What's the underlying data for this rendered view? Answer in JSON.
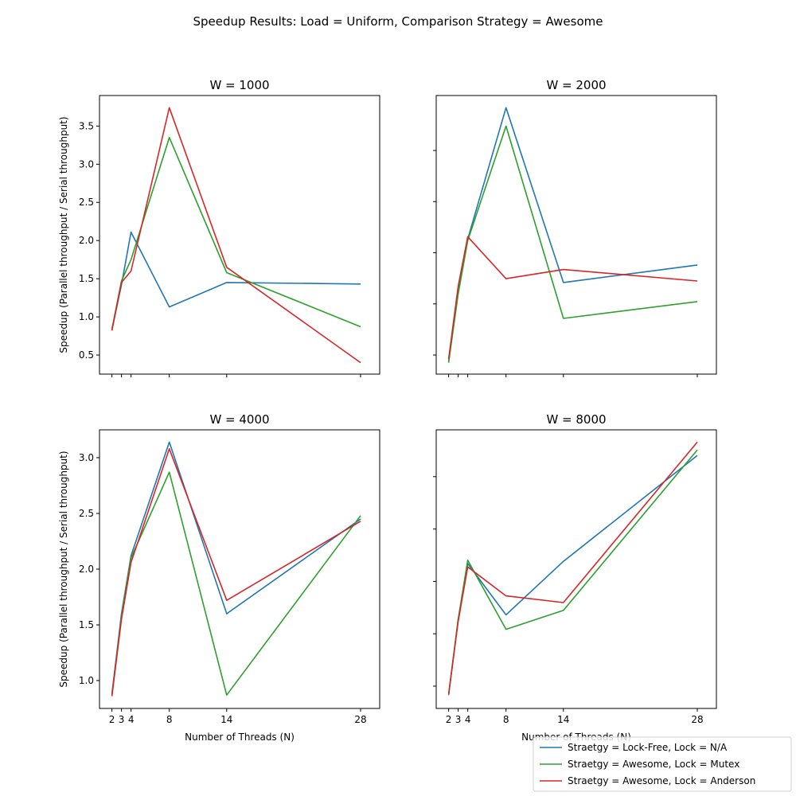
{
  "figure": {
    "title": "Speedup Results: Load = Uniform, Comparison Strategy = Awesome",
    "xlabel": "Number of Threads (N)",
    "ylabel": "Speedup (Parallel throughput / Serial throughput)"
  },
  "legend": {
    "position": "bottom-right",
    "entries": [
      {
        "label": "Straetgy = Lock-Free, Lock = N/A",
        "color": "#1f77b4"
      },
      {
        "label": "Straetgy = Awesome, Lock = Mutex",
        "color": "#2ca02c"
      },
      {
        "label": "Straetgy = Awesome, Lock = Anderson",
        "color": "#d62728"
      }
    ]
  },
  "chart_data": [
    {
      "type": "line",
      "title": "W = 1000",
      "x": [
        2,
        3,
        4,
        8,
        14,
        28
      ],
      "xticks": [
        2,
        3,
        4,
        8,
        14,
        28
      ],
      "xlim": [
        0.7,
        30
      ],
      "ylim": [
        0.25,
        3.9
      ],
      "yticks": [
        0.5,
        1.0,
        1.5,
        2.0,
        2.5,
        3.0,
        3.5
      ],
      "ytick_labels": [
        "0.5",
        "1.0",
        "1.5",
        "2.0",
        "2.5",
        "3.0",
        "3.5"
      ],
      "show_xtick_labels": false,
      "show_ytick_labels": true,
      "show_xlabel": false,
      "show_ylabel": true,
      "series": [
        {
          "name": "Straetgy = Lock-Free, Lock = N/A",
          "color": "#1f77b4",
          "values": [
            0.83,
            1.42,
            2.11,
            1.13,
            1.45,
            1.43
          ]
        },
        {
          "name": "Straetgy = Awesome, Lock = Mutex",
          "color": "#2ca02c",
          "values": [
            0.84,
            1.47,
            1.75,
            3.35,
            1.58,
            0.87
          ]
        },
        {
          "name": "Straetgy = Awesome, Lock = Anderson",
          "color": "#d62728",
          "values": [
            0.82,
            1.45,
            1.6,
            3.74,
            1.65,
            0.4
          ]
        }
      ]
    },
    {
      "type": "line",
      "title": "W = 2000",
      "x": [
        2,
        3,
        4,
        8,
        14,
        28
      ],
      "xticks": [
        2,
        3,
        4,
        8,
        14,
        28
      ],
      "xlim": [
        0.7,
        30
      ],
      "ylim": [
        0.25,
        3.9
      ],
      "yticks": [
        0.5,
        1.17,
        1.84,
        2.51,
        3.18
      ],
      "ytick_labels": [
        "",
        "",
        "",
        "",
        ""
      ],
      "show_xtick_labels": false,
      "show_ytick_labels": false,
      "show_xlabel": false,
      "show_ylabel": false,
      "series": [
        {
          "name": "Straetgy = Lock-Free, Lock = N/A",
          "color": "#1f77b4",
          "values": [
            0.42,
            1.35,
            2.02,
            3.74,
            1.45,
            1.68
          ]
        },
        {
          "name": "Straetgy = Awesome, Lock = Mutex",
          "color": "#2ca02c",
          "values": [
            0.4,
            1.3,
            2.0,
            3.5,
            0.98,
            1.2
          ]
        },
        {
          "name": "Straetgy = Awesome, Lock = Anderson",
          "color": "#d62728",
          "values": [
            0.45,
            1.4,
            2.05,
            1.5,
            1.62,
            1.47
          ]
        }
      ]
    },
    {
      "type": "line",
      "title": "W = 4000",
      "x": [
        2,
        3,
        4,
        8,
        14,
        28
      ],
      "xticks": [
        2,
        3,
        4,
        8,
        14,
        28
      ],
      "xlim": [
        0.7,
        30
      ],
      "ylim": [
        0.75,
        3.25
      ],
      "yticks": [
        1.0,
        1.5,
        2.0,
        2.5,
        3.0
      ],
      "ytick_labels": [
        "1.0",
        "1.5",
        "2.0",
        "2.5",
        "3.0"
      ],
      "show_xtick_labels": true,
      "show_ytick_labels": true,
      "show_xlabel": true,
      "show_ylabel": true,
      "series": [
        {
          "name": "Straetgy = Lock-Free, Lock = N/A",
          "color": "#1f77b4",
          "values": [
            0.88,
            1.6,
            2.12,
            3.14,
            1.6,
            2.45
          ]
        },
        {
          "name": "Straetgy = Awesome, Lock = Mutex",
          "color": "#2ca02c",
          "values": [
            0.87,
            1.58,
            2.1,
            2.87,
            0.87,
            2.48
          ]
        },
        {
          "name": "Straetgy = Awesome, Lock = Anderson",
          "color": "#d62728",
          "values": [
            0.86,
            1.55,
            2.06,
            3.08,
            1.72,
            2.43
          ]
        }
      ]
    },
    {
      "type": "line",
      "title": "W = 8000",
      "x": [
        2,
        3,
        4,
        8,
        14,
        28
      ],
      "xticks": [
        2,
        3,
        4,
        8,
        14,
        28
      ],
      "xlim": [
        0.7,
        30
      ],
      "ylim": [
        0.75,
        3.25
      ],
      "yticks": [
        0.95,
        1.42,
        1.89,
        2.36,
        2.83
      ],
      "ytick_labels": [
        "",
        "",
        "",
        "",
        ""
      ],
      "show_xtick_labels": true,
      "show_ytick_labels": false,
      "show_xlabel": true,
      "show_ylabel": false,
      "series": [
        {
          "name": "Straetgy = Lock-Free, Lock = N/A",
          "color": "#1f77b4",
          "values": [
            0.87,
            1.55,
            2.05,
            1.59,
            2.07,
            3.02
          ]
        },
        {
          "name": "Straetgy = Awesome, Lock = Mutex",
          "color": "#2ca02c",
          "values": [
            0.87,
            1.55,
            2.08,
            1.46,
            1.63,
            3.07
          ]
        },
        {
          "name": "Straetgy = Awesome, Lock = Anderson",
          "color": "#d62728",
          "values": [
            0.88,
            1.53,
            2.02,
            1.76,
            1.7,
            3.14
          ]
        }
      ]
    }
  ]
}
